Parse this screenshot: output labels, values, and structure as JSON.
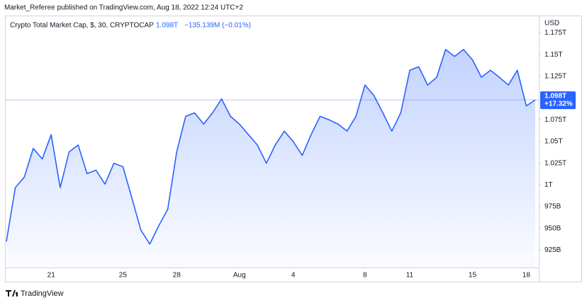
{
  "header": "Market_Referee published on TradingView.com, Aug 18, 2022 12:24 UTC+2",
  "footer": "TradingView",
  "chart_data": {
    "type": "line",
    "legend": {
      "symbol": "Crypto Total Market Cap, $, 30, CRYPTOCAP",
      "last": "1.098T",
      "change": "−135.139M (−0.01%)"
    },
    "currency": "USD",
    "last_value_label": "1.098T",
    "change_label": "+17.32%",
    "color": "#2962ff",
    "categories": [
      null,
      null,
      null,
      null,
      null,
      "21",
      null,
      null,
      null,
      null,
      null,
      null,
      null,
      "25",
      null,
      null,
      null,
      null,
      null,
      "28",
      null,
      null,
      null,
      null,
      null,
      null,
      "Aug",
      null,
      null,
      null,
      null,
      null,
      "4",
      null,
      null,
      null,
      null,
      null,
      null,
      null,
      "8",
      null,
      null,
      null,
      null,
      "11",
      null,
      null,
      null,
      null,
      null,
      null,
      "15",
      null,
      null,
      null,
      null,
      null,
      "18",
      null
    ],
    "values": [
      935,
      997,
      1009,
      1042,
      1030,
      1058,
      997,
      1038,
      1046,
      1013,
      1017,
      1001,
      1025,
      1021,
      985,
      948,
      932,
      953,
      972,
      1038,
      1079,
      1083,
      1070,
      1083,
      1099,
      1079,
      1070,
      1058,
      1046,
      1025,
      1046,
      1062,
      1050,
      1034,
      1058,
      1079,
      1075,
      1070,
      1062,
      1079,
      1115,
      1103,
      1083,
      1062,
      1083,
      1132,
      1136,
      1115,
      1124,
      1156,
      1148,
      1156,
      1144,
      1124,
      1132,
      1124,
      1115,
      1132,
      1091,
      1098
    ],
    "ylim": [
      905,
      1195
    ],
    "yticks": [
      {
        "value": 925,
        "label": "925B"
      },
      {
        "value": 950,
        "label": "950B"
      },
      {
        "value": 975,
        "label": "975B"
      },
      {
        "value": 1000,
        "label": "1T"
      },
      {
        "value": 1025,
        "label": "1.025T"
      },
      {
        "value": 1050,
        "label": "1.05T"
      },
      {
        "value": 1075,
        "label": "1.075T"
      },
      {
        "value": 1125,
        "label": "1.125T"
      },
      {
        "value": 1150,
        "label": "1.15T"
      },
      {
        "value": 1175,
        "label": "1.175T"
      }
    ]
  }
}
